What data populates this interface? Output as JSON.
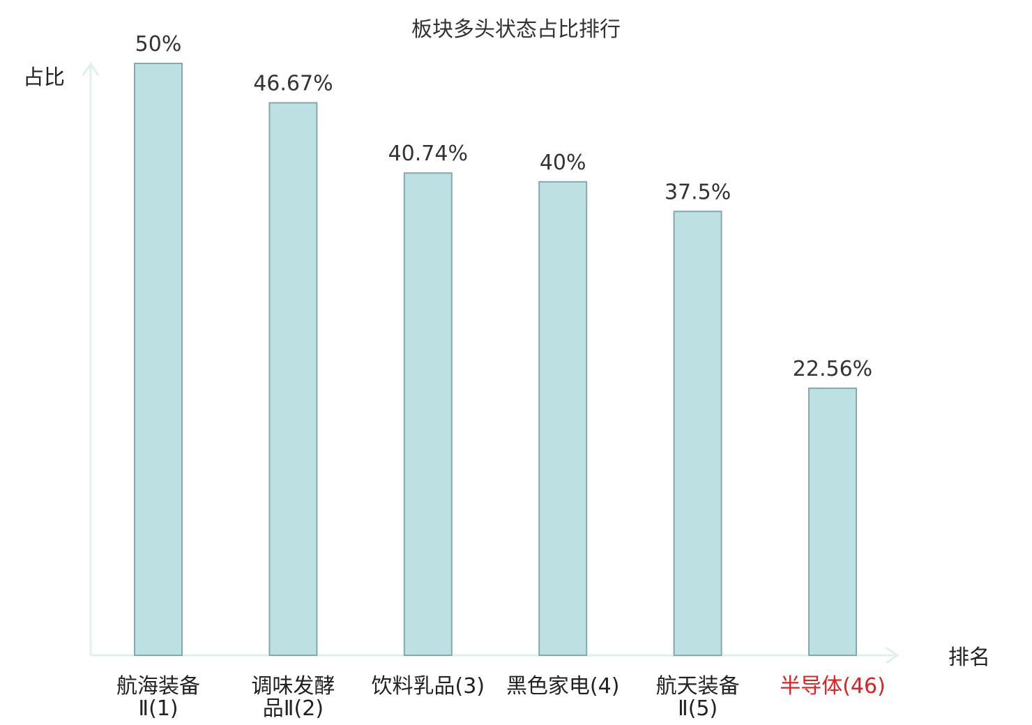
{
  "chart_data": {
    "type": "bar",
    "title": "板块多头状态占比排行",
    "ylabel": "占比",
    "xlabel": "排名",
    "ylim": [
      0,
      50
    ],
    "grid": false,
    "legend": "none",
    "unit": "%",
    "categories": [
      {
        "lines": [
          "航海装备",
          "Ⅱ(1)"
        ],
        "highlight": false
      },
      {
        "lines": [
          "调味发酵",
          "品Ⅱ(2)"
        ],
        "highlight": false
      },
      {
        "lines": [
          "饮料乳品(3)"
        ],
        "highlight": false
      },
      {
        "lines": [
          "黑色家电(4)"
        ],
        "highlight": false
      },
      {
        "lines": [
          "航天装备",
          "Ⅱ(5)"
        ],
        "highlight": false
      },
      {
        "lines": [
          "半导体(46)"
        ],
        "highlight": true
      }
    ],
    "values": [
      50,
      46.67,
      40.74,
      40,
      37.5,
      22.56
    ],
    "value_labels": [
      "50%",
      "46.67%",
      "40.74%",
      "40%",
      "37.5%",
      "22.56%"
    ]
  },
  "colors": {
    "bar_fill": "#bde0e3",
    "bar_stroke": "#86a8aa",
    "axis": "#dff0ee",
    "highlight_text": "#e02020"
  }
}
